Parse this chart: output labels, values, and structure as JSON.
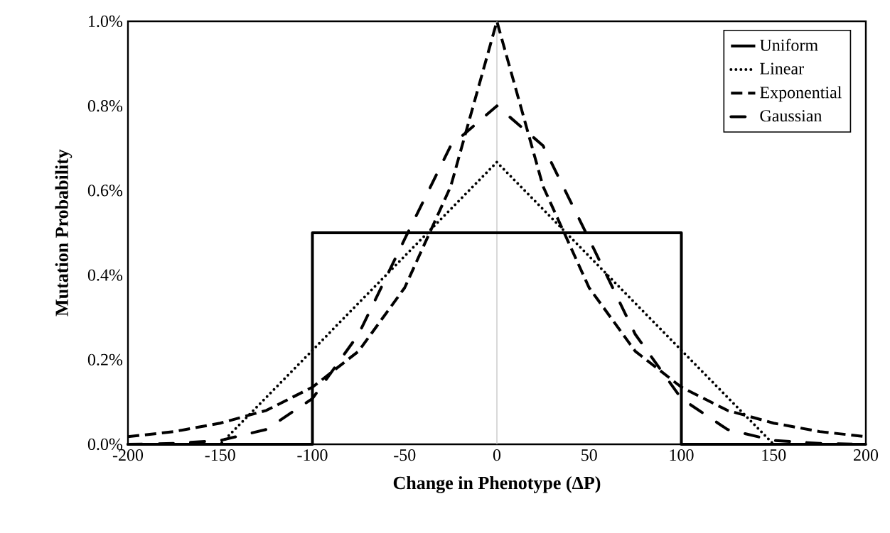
{
  "chart_data": {
    "type": "line",
    "xlabel": "Change in Phenotype (ΔP)",
    "ylabel": "Mutation Probability",
    "xlim": [
      -200,
      200
    ],
    "xticks": [
      -200,
      -150,
      -100,
      -50,
      0,
      50,
      100,
      150,
      200
    ],
    "ylim": [
      0,
      1.0
    ],
    "yticks": [
      {
        "value": 0,
        "label": "0.0%"
      },
      {
        "value": 0.2,
        "label": "0.2%"
      },
      {
        "value": 0.4,
        "label": "0.4%"
      },
      {
        "value": 0.6,
        "label": "0.6%"
      },
      {
        "value": 0.8,
        "label": "0.8%"
      },
      {
        "value": 1.0,
        "label": "1.0%"
      }
    ],
    "legend": "top right",
    "ref_lines": [
      {
        "axis": "x",
        "value": 0,
        "color": "#bfbfbf"
      }
    ],
    "series": [
      {
        "name": "Uniform",
        "color": "#000000",
        "line_style": "solid",
        "x": [
          -200,
          -100,
          -100,
          100,
          100,
          200
        ],
        "values": [
          0,
          0,
          0.5,
          0.5,
          0,
          0
        ]
      },
      {
        "name": "Linear",
        "color": "#000000",
        "line_style": "dotted",
        "x": [
          -200,
          -150,
          0,
          150,
          200
        ],
        "values": [
          0,
          0,
          0.667,
          0,
          0
        ]
      },
      {
        "name": "Exponential",
        "color": "#000000",
        "line_style": "dashed",
        "x": [
          -200,
          -175,
          -150,
          -125,
          -100,
          -75,
          -50,
          -25,
          0,
          25,
          50,
          75,
          100,
          125,
          150,
          175,
          200
        ],
        "values": [
          0.018,
          0.03,
          0.05,
          0.08,
          0.135,
          0.22,
          0.37,
          0.61,
          1.0,
          0.61,
          0.37,
          0.22,
          0.135,
          0.08,
          0.05,
          0.03,
          0.018
        ]
      },
      {
        "name": "Gaussian",
        "color": "#000000",
        "line_style": "dashdot",
        "x": [
          -200,
          -175,
          -150,
          -125,
          -100,
          -75,
          -50,
          -25,
          0,
          25,
          50,
          75,
          100,
          125,
          150,
          175,
          200
        ],
        "values": [
          0,
          0.002,
          0.009,
          0.035,
          0.108,
          0.26,
          0.485,
          0.706,
          0.8,
          0.706,
          0.485,
          0.26,
          0.108,
          0.035,
          0.009,
          0.002,
          0
        ]
      }
    ]
  }
}
